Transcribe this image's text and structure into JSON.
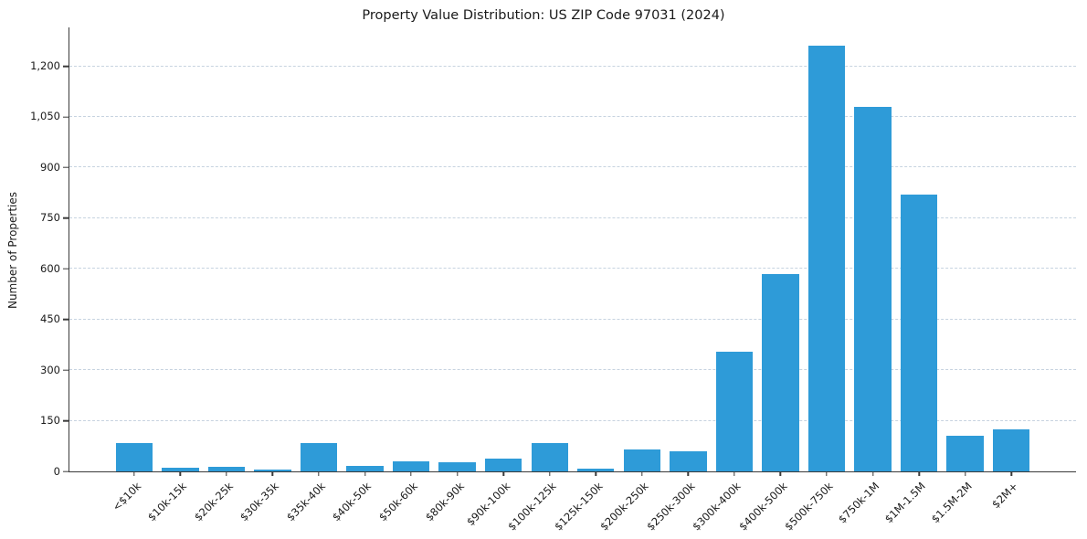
{
  "chart_data": {
    "type": "bar",
    "title": "Property Value Distribution: US ZIP Code 97031 (2024)",
    "xlabel": "",
    "ylabel": "Number of Properties",
    "categories": [
      "<$10k",
      "$10k-15k",
      "$20k-25k",
      "$30k-35k",
      "$35k-40k",
      "$40k-50k",
      "$50k-60k",
      "$80k-90k",
      "$90k-100k",
      "$100k-125k",
      "$125k-150k",
      "$200k-250k",
      "$250k-300k",
      "$300k-400k",
      "$400k-500k",
      "$500k-750k",
      "$750k-1M",
      "$1M-1.5M",
      "$1.5M-2M",
      "$2M+"
    ],
    "values": [
      85,
      10,
      13,
      6,
      85,
      15,
      30,
      28,
      38,
      83,
      9,
      65,
      60,
      355,
      585,
      1260,
      1080,
      820,
      105,
      125
    ],
    "yticks": [
      0,
      150,
      300,
      450,
      600,
      750,
      900,
      1050,
      1200
    ],
    "ytick_labels": [
      "0",
      "150",
      "300",
      "450",
      "600",
      "750",
      "900",
      "1,050",
      "1,200"
    ],
    "ylim": [
      0,
      1315
    ],
    "grid": "horizontal-dashed",
    "legend": "none",
    "bar_color": "#2E9BD8",
    "grid_color": "#c7d3e0",
    "axis_color": "#3a3a3a",
    "background": "#ffffff"
  }
}
